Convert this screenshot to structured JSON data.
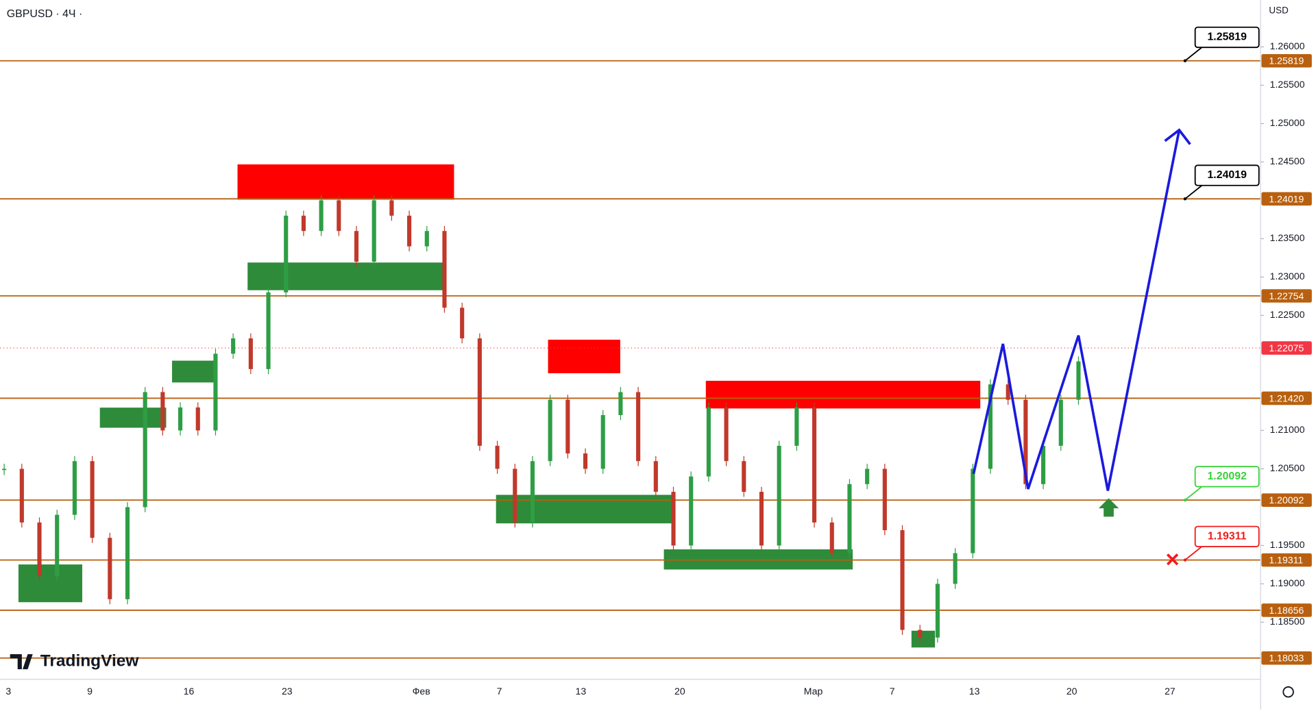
{
  "header": {
    "symbol": "GBPUSD · 4Ч ·",
    "currency": "USD",
    "logo": "TradingView"
  },
  "price_axis": {
    "ylim": [
      1.17755,
      1.26611
    ],
    "ticks": [
      {
        "value": 1.26,
        "label": "1.26000"
      },
      {
        "value": 1.255,
        "label": "1.25500"
      },
      {
        "value": 1.25,
        "label": "1.25000"
      },
      {
        "value": 1.245,
        "label": "1.24500"
      },
      {
        "value": 1.235,
        "label": "1.23500"
      },
      {
        "value": 1.23,
        "label": "1.23000"
      },
      {
        "value": 1.225,
        "label": "1.22500"
      },
      {
        "value": 1.21,
        "label": "1.21000"
      },
      {
        "value": 1.205,
        "label": "1.20500"
      },
      {
        "value": 1.195,
        "label": "1.19500"
      },
      {
        "value": 1.19,
        "label": "1.19000"
      },
      {
        "value": 1.185,
        "label": "1.18500"
      }
    ]
  },
  "levels": [
    {
      "value": 1.25819,
      "label": "1.25819"
    },
    {
      "value": 1.24019,
      "label": "1.24019"
    },
    {
      "value": 1.22754,
      "label": "1.22754"
    },
    {
      "value": 1.2142,
      "label": "1.21420"
    },
    {
      "value": 1.20092,
      "label": "1.20092"
    },
    {
      "value": 1.19311,
      "label": "1.19311"
    },
    {
      "value": 1.18656,
      "label": "1.18656"
    },
    {
      "value": 1.18033,
      "label": "1.18033"
    }
  ],
  "current_price": {
    "value": 1.22075,
    "label": "1.22075"
  },
  "callouts": [
    {
      "value": 1.25819,
      "label": "1.25819",
      "color": "#000000"
    },
    {
      "value": 1.24019,
      "label": "1.24019",
      "color": "#000000"
    },
    {
      "value": 1.20092,
      "label": "1.20092",
      "color": "#3ad13a"
    },
    {
      "value": 1.19311,
      "label": "1.19311",
      "color": "#f01c1c"
    }
  ],
  "time_axis": [
    "3",
    "9",
    "16",
    "23",
    "Фев",
    "7",
    "13",
    "20",
    "Мар",
    "7",
    "13",
    "20",
    "27"
  ],
  "closes": [
    1.205,
    1.198,
    1.191,
    1.199,
    1.206,
    1.196,
    1.188,
    1.2,
    1.215,
    1.21,
    1.213,
    1.21,
    1.22,
    1.222,
    1.218,
    1.228,
    1.238,
    1.236,
    1.24,
    1.236,
    1.232,
    1.24,
    1.238,
    1.234,
    1.236,
    1.226,
    1.222,
    1.208,
    1.205,
    1.198,
    1.206,
    1.214,
    1.207,
    1.205,
    1.212,
    1.215,
    1.206,
    1.202,
    1.195,
    1.204,
    1.213,
    1.206,
    1.202,
    1.195,
    1.208,
    1.213,
    1.198,
    1.194,
    1.203,
    1.205,
    1.197,
    1.184,
    1.183,
    1.19,
    1.194,
    1.205,
    1.216,
    1.214,
    1.203,
    1.208,
    1.214,
    1.219
  ]
}
